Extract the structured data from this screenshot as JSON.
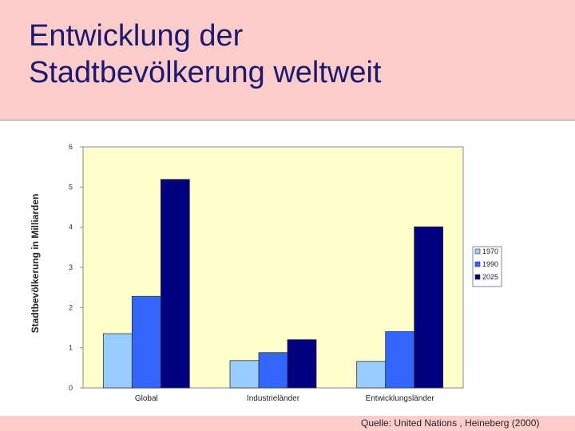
{
  "slide": {
    "title_line1": "Entwicklung der",
    "title_line2": "Stadtbevölkerung weltweit",
    "source": "Quelle: United Nations , Heineberg (2000)"
  },
  "colors": {
    "page_background": "#ffcccc",
    "plot_background": "#ffffcc",
    "title": "#1a1a6e"
  },
  "chart_data": {
    "type": "bar",
    "title": "",
    "xlabel": "",
    "ylabel": "Stadtbevölkerung in Milliarden",
    "ylim": [
      0,
      6
    ],
    "yticks": [
      0,
      1,
      2,
      3,
      4,
      5,
      6
    ],
    "categories": [
      "Global",
      "Industrieländer",
      "Entwicklungsländer"
    ],
    "series": [
      {
        "name": "1970",
        "color": "#99ccff",
        "values": [
          1.35,
          0.68,
          0.66
        ]
      },
      {
        "name": "1990",
        "color": "#3366ff",
        "values": [
          2.28,
          0.88,
          1.4
        ]
      },
      {
        "name": "2025",
        "color": "#000080",
        "values": [
          5.19,
          1.2,
          4.01
        ]
      }
    ],
    "legend_position": "right",
    "grid": false
  }
}
